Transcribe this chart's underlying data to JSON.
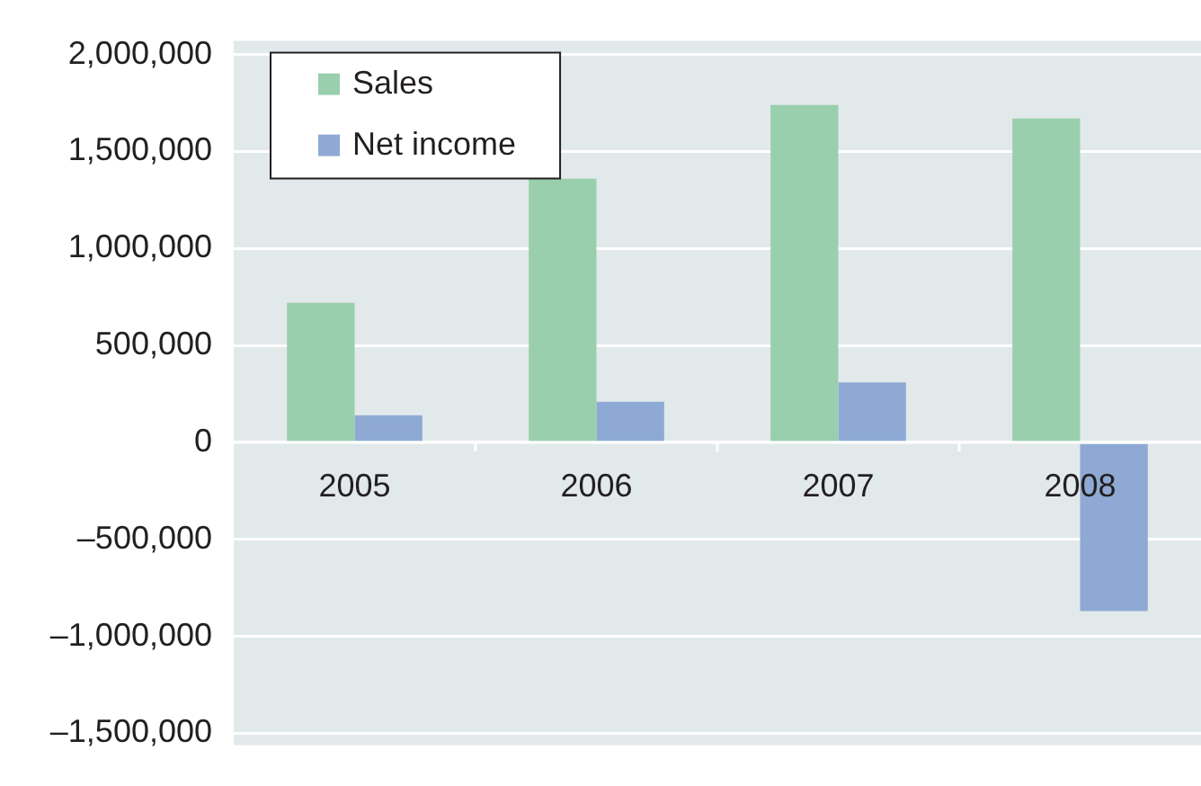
{
  "chart_data": {
    "type": "bar",
    "categories": [
      "2005",
      "2006",
      "2007",
      "2008"
    ],
    "series": [
      {
        "name": "Sales",
        "color": "#99cfad",
        "values": [
          720000,
          1360000,
          1740000,
          1670000
        ]
      },
      {
        "name": "Net income",
        "color": "#8eaad4",
        "values": [
          140000,
          210000,
          310000,
          -870000
        ]
      }
    ],
    "ylim": [
      -1560000,
      2070000
    ],
    "yticks": [
      {
        "value": -1500000,
        "label": "–1,500,000"
      },
      {
        "value": -1000000,
        "label": "–1,000,000"
      },
      {
        "value": -500000,
        "label": "–500,000"
      },
      {
        "value": 0,
        "label": "0"
      },
      {
        "value": 500000,
        "label": "500,000"
      },
      {
        "value": 1000000,
        "label": "1,000,000"
      },
      {
        "value": 1500000,
        "label": "1,500,000"
      },
      {
        "value": 2000000,
        "label": "2,000,000"
      }
    ],
    "grid": "y",
    "legend": "top left"
  }
}
